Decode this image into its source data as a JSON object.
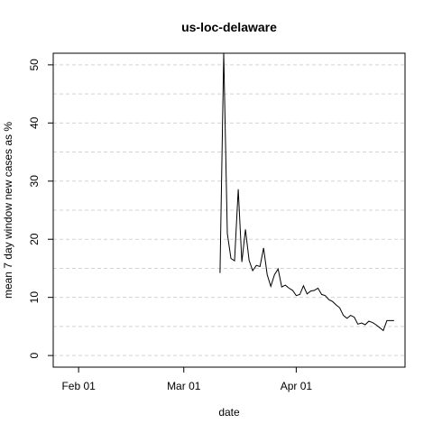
{
  "chart_data": {
    "type": "line",
    "title": "us-loc-delaware",
    "xlabel": "date",
    "ylabel": "mean  7  day window new cases as %",
    "x_ticks": [
      {
        "label": "Feb 01",
        "date": "2020-02-01"
      },
      {
        "label": "Mar 01",
        "date": "2020-03-01"
      },
      {
        "label": "Apr 01",
        "date": "2020-04-01"
      }
    ],
    "y_ticks": [
      0,
      10,
      20,
      30,
      40,
      50
    ],
    "xlim": [
      "2020-01-25",
      "2020-05-01"
    ],
    "ylim": [
      -2,
      52
    ],
    "grid": "horizontal dashed",
    "line_color": "#000000",
    "grid_color": "#d3d3d3",
    "series": [
      {
        "x": [
          "2020-03-11",
          "2020-03-12",
          "2020-03-13",
          "2020-03-14",
          "2020-03-15",
          "2020-03-16",
          "2020-03-17",
          "2020-03-18",
          "2020-03-19",
          "2020-03-20",
          "2020-03-21",
          "2020-03-22",
          "2020-03-23",
          "2020-03-24",
          "2020-03-25",
          "2020-03-26",
          "2020-03-27",
          "2020-03-28",
          "2020-03-29",
          "2020-03-30",
          "2020-03-31",
          "2020-04-01",
          "2020-04-02",
          "2020-04-03",
          "2020-04-04",
          "2020-04-05",
          "2020-04-06",
          "2020-04-07",
          "2020-04-08",
          "2020-04-09",
          "2020-04-10",
          "2020-04-11",
          "2020-04-12",
          "2020-04-13",
          "2020-04-14",
          "2020-04-15",
          "2020-04-16",
          "2020-04-17",
          "2020-04-18",
          "2020-04-19",
          "2020-04-20",
          "2020-04-21",
          "2020-04-22",
          "2020-04-23",
          "2020-04-24",
          "2020-04-25",
          "2020-04-26",
          "2020-04-27",
          "2020-04-28"
        ],
        "y": [
          14.2,
          53,
          21,
          16.7,
          16.3,
          28.6,
          16.1,
          21.7,
          16.4,
          14.6,
          15.5,
          15.3,
          18.5,
          13.9,
          11.9,
          13.9,
          14.9,
          11.8,
          12.1,
          11.6,
          11.2,
          10.3,
          10.5,
          12.0,
          10.6,
          11.1,
          11.2,
          11.6,
          10.5,
          10.3,
          9.6,
          9.3,
          8.7,
          8.2,
          6.9,
          6.4,
          6.9,
          6.6,
          5.4,
          5.6,
          5.3,
          5.9,
          5.7,
          5.3,
          4.8,
          4.3,
          6.0,
          6.0,
          6.0
        ]
      }
    ]
  }
}
